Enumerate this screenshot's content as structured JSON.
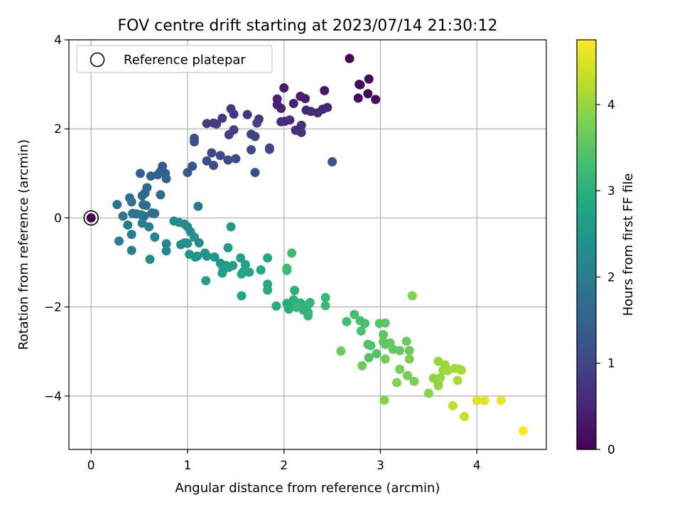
{
  "chart_data": {
    "type": "scatter",
    "title": "FOV centre drift starting at 2023/07/14 21:30:12",
    "xlabel": "Angular distance from reference (arcmin)",
    "ylabel": "Rotation from reference (arcmin)",
    "xlim": [
      -0.23,
      4.72
    ],
    "ylim": [
      -5.2,
      4.0
    ],
    "xticks": [
      0,
      1,
      2,
      3,
      4
    ],
    "yticks": [
      -4,
      -2,
      0,
      2,
      4
    ],
    "grid": true,
    "legend": {
      "placement": "top-left",
      "entries": [
        "Reference platepar"
      ]
    },
    "reference_point": {
      "x": 0,
      "y": 0
    },
    "colorbar": {
      "label": "Hours from first FF file",
      "ticks": [
        0,
        1,
        2,
        3,
        4
      ],
      "range": [
        0,
        4.75
      ],
      "colormap": "viridis"
    },
    "colormap_stops": [
      "#440154",
      "#482475",
      "#414487",
      "#355f8d",
      "#2a788e",
      "#21918c",
      "#22a884",
      "#44bf70",
      "#7ad151",
      "#bddf26",
      "#fde725"
    ],
    "reference_colors": {
      "ring": "#000000",
      "dot": "#440154"
    },
    "points": [
      [
        2.68,
        3.58,
        0.05
      ],
      [
        2.78,
        3.0,
        0.08
      ],
      [
        2.88,
        3.12,
        0.1
      ],
      [
        2.87,
        2.79,
        0.12
      ],
      [
        2.79,
        2.99,
        0.15
      ],
      [
        2.77,
        2.69,
        0.17
      ],
      [
        2.95,
        2.66,
        0.2
      ],
      [
        2.42,
        2.86,
        0.3
      ],
      [
        2.0,
        2.92,
        0.35
      ],
      [
        2.17,
        2.73,
        0.38
      ],
      [
        2.22,
        2.68,
        0.4
      ],
      [
        1.93,
        2.67,
        0.42
      ],
      [
        1.93,
        2.54,
        0.44
      ],
      [
        1.97,
        2.46,
        0.46
      ],
      [
        2.1,
        2.57,
        0.48
      ],
      [
        2.45,
        2.48,
        0.5
      ],
      [
        2.4,
        2.44,
        0.52
      ],
      [
        2.23,
        2.42,
        0.54
      ],
      [
        2.28,
        2.39,
        0.56
      ],
      [
        2.35,
        2.36,
        0.58
      ],
      [
        2.06,
        2.2,
        0.6
      ],
      [
        1.97,
        2.16,
        0.62
      ],
      [
        2.01,
        2.17,
        0.64
      ],
      [
        2.18,
        2.08,
        0.66
      ],
      [
        2.12,
        1.97,
        0.68
      ],
      [
        2.18,
        1.92,
        0.7
      ],
      [
        1.74,
        2.22,
        0.72
      ],
      [
        1.62,
        2.32,
        0.74
      ],
      [
        1.48,
        2.33,
        0.76
      ],
      [
        1.45,
        2.45,
        0.78
      ],
      [
        1.36,
        2.24,
        0.8
      ],
      [
        1.27,
        2.13,
        0.82
      ],
      [
        1.2,
        2.12,
        0.84
      ],
      [
        1.3,
        2.11,
        0.86
      ],
      [
        1.43,
        1.87,
        0.88
      ],
      [
        1.48,
        1.98,
        0.9
      ],
      [
        1.66,
        1.88,
        0.92
      ],
      [
        1.7,
        1.83,
        0.94
      ],
      [
        1.72,
        2.13,
        0.96
      ],
      [
        1.85,
        1.57,
        0.98
      ],
      [
        1.85,
        1.54,
        1.0
      ],
      [
        1.66,
        1.53,
        1.02
      ],
      [
        1.25,
        1.46,
        1.04
      ],
      [
        1.34,
        1.4,
        1.06
      ],
      [
        1.42,
        1.3,
        1.08
      ],
      [
        1.5,
        1.33,
        1.1
      ],
      [
        1.2,
        1.28,
        1.12
      ],
      [
        1.27,
        1.18,
        1.14
      ],
      [
        2.5,
        1.26,
        1.16
      ],
      [
        1.7,
        1.02,
        1.18
      ],
      [
        1.07,
        1.79,
        1.2
      ],
      [
        1.07,
        1.71,
        1.22
      ],
      [
        1.05,
        1.16,
        1.25
      ],
      [
        1.0,
        1.02,
        1.3
      ],
      [
        0.74,
        1.16,
        1.35
      ],
      [
        0.72,
        1.04,
        1.4
      ],
      [
        0.77,
        1.0,
        1.45
      ],
      [
        0.69,
        0.97,
        1.48
      ],
      [
        0.51,
        1.0,
        1.5
      ],
      [
        0.62,
        0.94,
        1.52
      ],
      [
        0.78,
        0.88,
        1.55
      ],
      [
        0.58,
        0.68,
        1.58
      ],
      [
        0.56,
        0.56,
        1.6
      ],
      [
        0.53,
        0.5,
        1.62
      ],
      [
        0.72,
        0.52,
        1.65
      ],
      [
        0.54,
        0.3,
        1.68
      ],
      [
        0.57,
        0.28,
        1.7
      ],
      [
        0.55,
        0.04,
        1.72
      ],
      [
        0.63,
        0.11,
        1.74
      ],
      [
        0.66,
        0.1,
        1.76
      ],
      [
        0.4,
        0.45,
        1.78
      ],
      [
        0.42,
        0.36,
        1.8
      ],
      [
        0.27,
        0.3,
        1.82
      ],
      [
        0.43,
        0.1,
        1.84
      ],
      [
        0.47,
        0.09,
        1.86
      ],
      [
        0.33,
        0.04,
        1.88
      ],
      [
        0.52,
        0.07,
        1.9
      ],
      [
        1.11,
        0.26,
        1.92
      ],
      [
        0.38,
        -0.16,
        1.95
      ],
      [
        0.53,
        -0.12,
        2.0
      ],
      [
        0.6,
        -0.2,
        2.02
      ],
      [
        0.42,
        -0.37,
        2.05
      ],
      [
        0.29,
        -0.52,
        2.08
      ],
      [
        0.42,
        -0.73,
        2.1
      ],
      [
        0.66,
        -0.43,
        2.12
      ],
      [
        0.78,
        -0.58,
        2.15
      ],
      [
        0.78,
        -0.74,
        2.18
      ],
      [
        0.61,
        -0.93,
        2.2
      ],
      [
        0.86,
        -0.07,
        2.22
      ],
      [
        0.91,
        -0.1,
        2.24
      ],
      [
        0.97,
        -0.14,
        2.26
      ],
      [
        1.0,
        -0.2,
        2.28
      ],
      [
        1.03,
        -0.31,
        2.3
      ],
      [
        1.12,
        -0.56,
        2.32
      ],
      [
        0.93,
        -0.6,
        2.34
      ],
      [
        0.97,
        -0.56,
        2.36
      ],
      [
        1.0,
        -0.57,
        2.38
      ],
      [
        1.07,
        -0.43,
        2.4
      ],
      [
        1.02,
        -0.82,
        2.42
      ],
      [
        1.08,
        -0.88,
        2.44
      ],
      [
        1.1,
        -0.86,
        2.46
      ],
      [
        1.18,
        -0.79,
        2.48
      ],
      [
        1.2,
        -0.86,
        2.5
      ],
      [
        1.28,
        -0.88,
        2.52
      ],
      [
        1.34,
        -1.02,
        2.54
      ],
      [
        1.42,
        -0.67,
        2.56
      ],
      [
        1.45,
        -0.2,
        2.58
      ],
      [
        1.4,
        -1.07,
        2.6
      ],
      [
        1.43,
        -1.11,
        2.62
      ],
      [
        1.47,
        -1.07,
        2.64
      ],
      [
        1.37,
        -1.17,
        2.66
      ],
      [
        1.36,
        -1.24,
        2.68
      ],
      [
        1.19,
        -1.41,
        2.7
      ],
      [
        1.55,
        -0.9,
        2.72
      ],
      [
        1.6,
        -1.05,
        2.74
      ],
      [
        1.58,
        -1.2,
        2.76
      ],
      [
        1.56,
        -1.26,
        2.78
      ],
      [
        1.64,
        -1.22,
        2.8
      ],
      [
        1.56,
        -1.75,
        2.82
      ],
      [
        1.76,
        -1.17,
        2.84
      ],
      [
        1.83,
        -0.9,
        2.86
      ],
      [
        1.83,
        -1.49,
        2.88
      ],
      [
        1.83,
        -1.62,
        2.9
      ],
      [
        1.92,
        -1.98,
        2.92
      ],
      [
        2.03,
        -1.92,
        2.94
      ],
      [
        2.05,
        -1.98,
        2.96
      ],
      [
        2.05,
        -2.05,
        2.98
      ],
      [
        2.1,
        -1.84,
        3.0
      ],
      [
        2.11,
        -1.63,
        3.02
      ],
      [
        2.17,
        -1.91,
        3.04
      ],
      [
        2.2,
        -2.07,
        3.06
      ],
      [
        2.25,
        -2.12,
        3.08
      ],
      [
        2.25,
        -1.95,
        3.1
      ],
      [
        2.27,
        -1.9,
        3.12
      ],
      [
        2.25,
        -2.2,
        3.14
      ],
      [
        2.13,
        -2.01,
        3.16
      ],
      [
        2.43,
        -1.79,
        3.18
      ],
      [
        2.43,
        -1.97,
        3.2
      ],
      [
        2.03,
        -1.18,
        3.22
      ],
      [
        2.03,
        -1.13,
        3.24
      ],
      [
        2.08,
        -0.79,
        3.26
      ],
      [
        2.65,
        -2.33,
        3.3
      ],
      [
        2.73,
        -2.17,
        3.32
      ],
      [
        2.79,
        -2.31,
        3.34
      ],
      [
        2.84,
        -2.37,
        3.36
      ],
      [
        2.8,
        -2.54,
        3.38
      ],
      [
        2.87,
        -2.84,
        3.4
      ],
      [
        2.9,
        -2.87,
        3.42
      ],
      [
        2.88,
        -3.14,
        3.44
      ],
      [
        2.96,
        -3.05,
        3.46
      ],
      [
        2.99,
        -2.37,
        3.48
      ],
      [
        3.05,
        -2.36,
        3.5
      ],
      [
        3.03,
        -2.62,
        3.52
      ],
      [
        3.03,
        -2.78,
        3.54
      ],
      [
        3.05,
        -2.84,
        3.56
      ],
      [
        3.1,
        -2.81,
        3.58
      ],
      [
        3.13,
        -2.95,
        3.6
      ],
      [
        3.2,
        -2.98,
        3.62
      ],
      [
        3.27,
        -2.77,
        3.64
      ],
      [
        3.3,
        -2.98,
        3.66
      ],
      [
        2.59,
        -2.99,
        3.68
      ],
      [
        2.81,
        -3.32,
        3.7
      ],
      [
        3.05,
        -3.17,
        3.72
      ],
      [
        3.2,
        -3.4,
        3.74
      ],
      [
        3.28,
        -3.54,
        3.76
      ],
      [
        3.3,
        -3.17,
        3.78
      ],
      [
        3.35,
        -3.67,
        3.8
      ],
      [
        3.33,
        -1.75,
        3.82
      ],
      [
        3.17,
        -3.7,
        3.84
      ],
      [
        3.04,
        -4.09,
        3.86
      ],
      [
        3.5,
        -3.94,
        3.9
      ],
      [
        3.55,
        -3.6,
        3.92
      ],
      [
        3.6,
        -3.73,
        3.94
      ],
      [
        3.6,
        -3.77,
        3.96
      ],
      [
        3.62,
        -3.59,
        3.98
      ],
      [
        3.65,
        -3.42,
        4.0
      ],
      [
        3.6,
        -3.22,
        4.02
      ],
      [
        3.67,
        -3.3,
        4.04
      ],
      [
        3.7,
        -3.43,
        4.06
      ],
      [
        3.77,
        -3.38,
        4.08
      ],
      [
        3.82,
        -3.4,
        4.1
      ],
      [
        3.84,
        -3.42,
        4.12
      ],
      [
        3.8,
        -3.65,
        4.14
      ],
      [
        3.75,
        -4.22,
        4.3
      ],
      [
        3.87,
        -4.46,
        4.35
      ],
      [
        4.0,
        -4.1,
        4.5
      ],
      [
        4.08,
        -4.1,
        4.55
      ],
      [
        4.25,
        -4.1,
        4.6
      ],
      [
        4.48,
        -4.78,
        4.75
      ]
    ]
  }
}
